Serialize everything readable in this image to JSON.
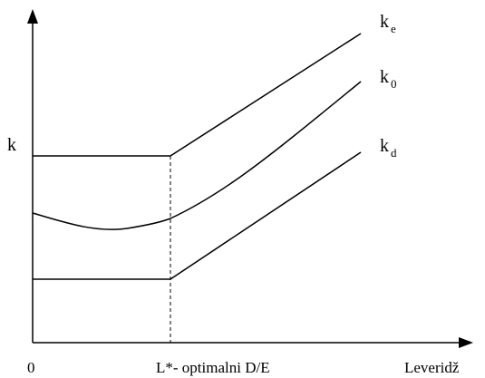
{
  "axes": {
    "y_label": "k",
    "origin_label": "0",
    "x_marker_label": "L*- optimalni D/E",
    "x_label": "Leveridž"
  },
  "curves": [
    {
      "id": "ke",
      "base": "k",
      "subscript": "e"
    },
    {
      "id": "k0",
      "base": "k",
      "subscript": "0"
    },
    {
      "id": "kd",
      "base": "k",
      "subscript": "d"
    }
  ]
}
